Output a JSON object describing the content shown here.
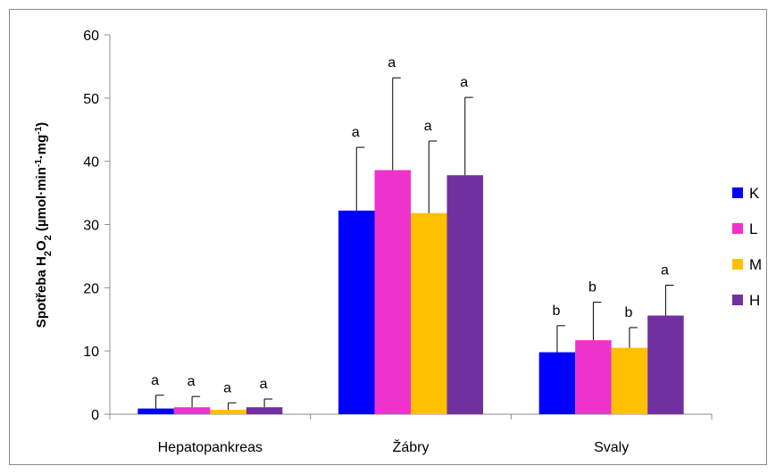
{
  "chart_data": {
    "type": "bar",
    "title": "",
    "xlabel": "",
    "ylabel": {
      "parts": [
        {
          "t": "Spotřeba H",
          "s": "normal"
        },
        {
          "t": "2",
          "s": "sub"
        },
        {
          "t": "O",
          "s": "normal"
        },
        {
          "t": "2",
          "s": "sub"
        },
        {
          "t": " (µmol·min",
          "s": "normal"
        },
        {
          "t": "-1",
          "s": "sup"
        },
        {
          "t": "·mg",
          "s": "normal"
        },
        {
          "t": "-1",
          "s": "sup"
        },
        {
          "t": ")",
          "s": "normal"
        }
      ]
    },
    "ylim": [
      0,
      60
    ],
    "yticks": [
      0,
      10,
      20,
      30,
      40,
      50,
      60
    ],
    "categories": [
      "Hepatopankreas",
      "Žábry",
      "Svaly"
    ],
    "series": [
      {
        "name": "K",
        "color": "#0000ff",
        "values": [
          0.9,
          32.2,
          9.8
        ],
        "errors": [
          2.1,
          10.0,
          4.2
        ],
        "labels": [
          "a",
          "a",
          "b"
        ]
      },
      {
        "name": "L",
        "color": "#ee33cc",
        "values": [
          1.1,
          38.6,
          11.7
        ],
        "errors": [
          1.7,
          14.6,
          6.0
        ],
        "labels": [
          "a",
          "a",
          "b"
        ]
      },
      {
        "name": "M",
        "color": "#ffc000",
        "values": [
          0.7,
          31.8,
          10.5
        ],
        "errors": [
          1.1,
          11.4,
          3.2
        ],
        "labels": [
          "a",
          "a",
          "b"
        ]
      },
      {
        "name": "H",
        "color": "#7030a0",
        "values": [
          1.1,
          37.8,
          15.6
        ],
        "errors": [
          1.3,
          12.3,
          4.8
        ],
        "labels": [
          "a",
          "a",
          "a"
        ]
      }
    ],
    "grid": false,
    "legend": "right"
  }
}
